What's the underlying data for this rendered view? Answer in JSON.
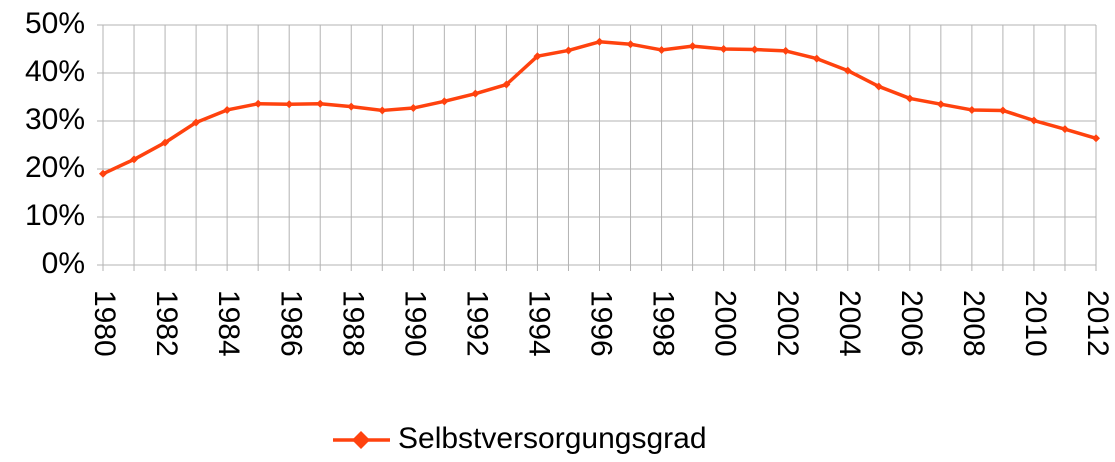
{
  "chart_data": {
    "type": "line",
    "categories": [
      "1980",
      null,
      "1982",
      null,
      "1984",
      null,
      "1986",
      null,
      "1988",
      null,
      "1990",
      null,
      "1992",
      null,
      "1994",
      null,
      "1996",
      null,
      "1998",
      null,
      "2000",
      null,
      "2002",
      null,
      "2004",
      null,
      "2006",
      null,
      "2008",
      null,
      "2010",
      null,
      "2012"
    ],
    "series": [
      {
        "name": "Selbstversorgungsgrad",
        "color": "#ff420e",
        "values": [
          19,
          22,
          25.5,
          29.7,
          32.3,
          33.6,
          33.5,
          33.6,
          33,
          32.2,
          32.7,
          34.1,
          35.7,
          37.6,
          43.5,
          44.7,
          46.5,
          46,
          44.8,
          45.6,
          45,
          44.9,
          44.6,
          43,
          40.5,
          37.2,
          34.7,
          33.5,
          32.3,
          32.2,
          30.1,
          28.3,
          26.4
        ]
      }
    ],
    "ylim": [
      0,
      50
    ],
    "yticks": [
      {
        "value": 0,
        "label": "0%"
      },
      {
        "value": 10,
        "label": "10%"
      },
      {
        "value": 20,
        "label": "20%"
      },
      {
        "value": 30,
        "label": "30%"
      },
      {
        "value": 40,
        "label": "40%"
      },
      {
        "value": 50,
        "label": "50%"
      }
    ],
    "grid": true,
    "legend": "bottom"
  }
}
